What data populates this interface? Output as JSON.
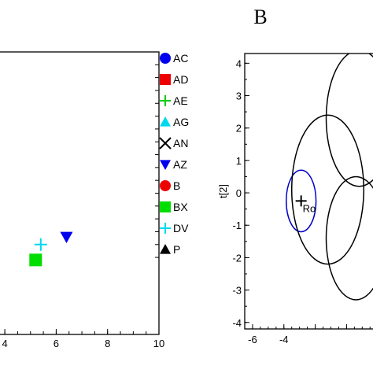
{
  "chart_data": [
    {
      "type": "scatter",
      "panel": "A",
      "title": "",
      "xlabel": "",
      "ylabel": "",
      "xlim": [
        3.2,
        10
      ],
      "ylim": [
        -6,
        5
      ],
      "x_ticks": [
        4,
        6,
        8,
        10
      ],
      "x_tick_labels": [
        "4",
        "6",
        "8",
        "10"
      ],
      "y_ticks_unlabeled": [
        -3,
        -2.5,
        -2,
        -1.5,
        -1,
        -0.5,
        0,
        0.5,
        1,
        1.5,
        2,
        2.5,
        3,
        3.5,
        4,
        4.5
      ],
      "series": [
        {
          "name": "BX",
          "marker": "square",
          "color": "#00dd00",
          "x": [
            5.2
          ],
          "y": [
            -3.1
          ]
        },
        {
          "name": "DV",
          "marker": "plus",
          "color": "#00d8f0",
          "x": [
            5.4
          ],
          "y": [
            -2.5
          ]
        },
        {
          "name": "AZ",
          "marker": "triangle-down",
          "color": "#0000ee",
          "x": [
            6.4
          ],
          "y": [
            -2.2
          ]
        }
      ],
      "legend": {
        "placement": "outside-right",
        "entries": [
          {
            "label": "AC",
            "marker": "circle",
            "color": "#0000ee"
          },
          {
            "label": "AD",
            "marker": "square",
            "color": "#ee0000"
          },
          {
            "label": "AE",
            "marker": "plus",
            "color": "#00cc00"
          },
          {
            "label": "AG",
            "marker": "triangle-up",
            "color": "#00d8f0"
          },
          {
            "label": "AN",
            "marker": "x",
            "color": "#000000"
          },
          {
            "label": "AZ",
            "marker": "triangle-down",
            "color": "#0000ee"
          },
          {
            "label": "B",
            "marker": "circle",
            "color": "#ee0000"
          },
          {
            "label": "BX",
            "marker": "square",
            "color": "#00dd00"
          },
          {
            "label": "DV",
            "marker": "plus",
            "color": "#00d8f0"
          },
          {
            "label": "P",
            "marker": "triangle-up",
            "color": "#000000"
          }
        ]
      }
    },
    {
      "type": "scatter",
      "panel": "B",
      "title": "B",
      "xlabel": "",
      "ylabel": "t[2]",
      "xlim": [
        -6.5,
        4
      ],
      "ylim": [
        -4.2,
        4.3
      ],
      "x_ticks": [
        -6,
        -4,
        -2,
        0,
        2
      ],
      "x_tick_labels": [
        "-6",
        "-4",
        "",
        "",
        ""
      ],
      "y_ticks": [
        -4,
        -3,
        -2,
        -1,
        0,
        1,
        2,
        3,
        4
      ],
      "y_tick_labels": [
        "-4",
        "-3",
        "-2",
        "-1",
        "0",
        "1",
        "2",
        "3",
        "4"
      ],
      "circles": [
        {
          "cx": -2.9,
          "cy": -0.25,
          "r": 0.95,
          "color": "#0000cc"
        },
        {
          "cx": -1.2,
          "cy": 0.1,
          "r": 2.3,
          "color": "#000000"
        },
        {
          "cx": 0.8,
          "cy": 2.3,
          "r": 2.1,
          "color": "#000000"
        },
        {
          "cx": 0.6,
          "cy": -1.4,
          "r": 1.9,
          "color": "#000000"
        }
      ],
      "points": [
        {
          "label": "Ro",
          "marker": "plus",
          "color": "#000000",
          "x": -2.9,
          "y": -0.25
        }
      ]
    }
  ]
}
